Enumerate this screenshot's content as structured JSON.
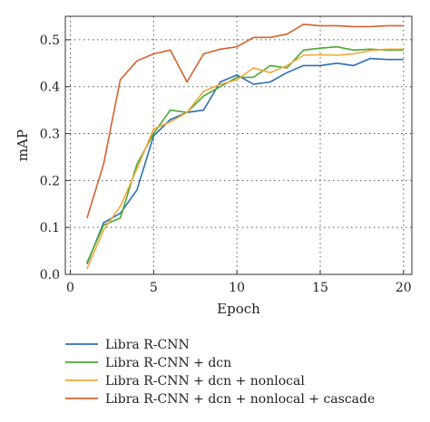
{
  "chart_data": {
    "type": "line",
    "title": "",
    "xlabel": "Epoch",
    "ylabel": "mAP",
    "xlim": [
      -0.3,
      20.5
    ],
    "ylim": [
      0,
      0.55
    ],
    "xticks": [
      0,
      5,
      10,
      15,
      20
    ],
    "yticks": [
      0.0,
      0.1,
      0.2,
      0.3,
      0.4,
      0.5
    ],
    "grid": true,
    "legend_position": "bottom",
    "x": [
      1,
      2,
      3,
      4,
      5,
      6,
      7,
      8,
      9,
      10,
      11,
      12,
      13,
      14,
      15,
      16,
      17,
      18,
      19,
      20
    ],
    "series": [
      {
        "name": "Libra R-CNN",
        "color": "#2e6db4",
        "values": [
          0.022,
          0.11,
          0.13,
          0.18,
          0.295,
          0.33,
          0.345,
          0.35,
          0.41,
          0.425,
          0.405,
          0.41,
          0.43,
          0.445,
          0.445,
          0.45,
          0.445,
          0.46,
          0.458,
          0.458
        ]
      },
      {
        "name": "Libra R-CNN + dcn",
        "color": "#4aa832",
        "values": [
          0.025,
          0.105,
          0.12,
          0.235,
          0.3,
          0.35,
          0.345,
          0.38,
          0.4,
          0.42,
          0.42,
          0.445,
          0.44,
          0.478,
          0.482,
          0.485,
          0.478,
          0.48,
          0.478,
          0.478
        ]
      },
      {
        "name": "Libra R-CNN + dcn + nonlocal",
        "color": "#f0a838",
        "values": [
          0.012,
          0.095,
          0.145,
          0.225,
          0.31,
          0.325,
          0.345,
          0.39,
          0.405,
          0.415,
          0.44,
          0.43,
          0.445,
          0.467,
          0.468,
          0.467,
          0.47,
          0.477,
          0.48,
          0.48
        ]
      },
      {
        "name": "Libra R-CNN + dcn + nonlocal + cascade",
        "color": "#d4622b",
        "values": [
          0.12,
          0.235,
          0.415,
          0.455,
          0.47,
          0.478,
          0.41,
          0.47,
          0.48,
          0.485,
          0.505,
          0.505,
          0.512,
          0.533,
          0.53,
          0.53,
          0.528,
          0.528,
          0.53,
          0.53
        ]
      }
    ]
  }
}
